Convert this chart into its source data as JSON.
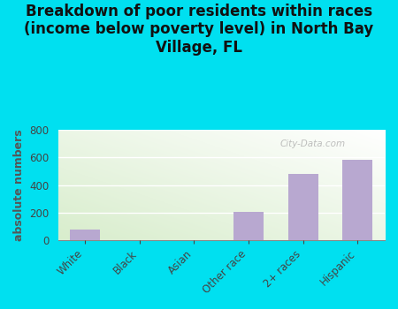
{
  "categories": [
    "White",
    "Black",
    "Asian",
    "Other race",
    "2+ races",
    "Hispanic"
  ],
  "values": [
    75,
    0,
    0,
    205,
    480,
    580
  ],
  "bar_color": "#b8a8d0",
  "title": "Breakdown of poor residents within races\n(income below poverty level) in North Bay\nVillage, FL",
  "ylabel": "absolute numbers",
  "ylim": [
    0,
    800
  ],
  "yticks": [
    0,
    200,
    400,
    600,
    800
  ],
  "background_color": "#00e0f0",
  "plot_bg_green": [
    216,
    237,
    204
  ],
  "plot_bg_white": [
    255,
    255,
    255
  ],
  "watermark": "City-Data.com",
  "title_fontsize": 12,
  "ylabel_fontsize": 9,
  "tick_fontsize": 8.5
}
